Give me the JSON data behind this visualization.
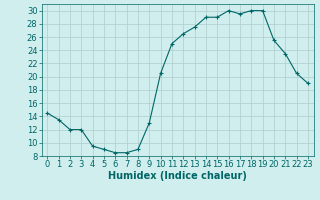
{
  "x": [
    0,
    1,
    2,
    3,
    4,
    5,
    6,
    7,
    8,
    9,
    10,
    11,
    12,
    13,
    14,
    15,
    16,
    17,
    18,
    19,
    20,
    21,
    22,
    23
  ],
  "y": [
    14.5,
    13.5,
    12.0,
    12.0,
    9.5,
    9.0,
    8.5,
    8.5,
    9.0,
    13.0,
    20.5,
    25.0,
    26.5,
    27.5,
    29.0,
    29.0,
    30.0,
    29.5,
    30.0,
    30.0,
    25.5,
    23.5,
    20.5,
    19.0
  ],
  "line_color": "#006666",
  "marker": "P",
  "marker_size": 2.5,
  "bg_color": "#d0eeee",
  "grid_color": "#b0cccc",
  "xlabel": "Humidex (Indice chaleur)",
  "xlim": [
    -0.5,
    23.5
  ],
  "ylim": [
    8,
    31
  ],
  "yticks": [
    8,
    10,
    12,
    14,
    16,
    18,
    20,
    22,
    24,
    26,
    28,
    30
  ],
  "xticks": [
    0,
    1,
    2,
    3,
    4,
    5,
    6,
    7,
    8,
    9,
    10,
    11,
    12,
    13,
    14,
    15,
    16,
    17,
    18,
    19,
    20,
    21,
    22,
    23
  ],
  "font_color": "#006666",
  "label_fontsize": 7,
  "tick_fontsize": 6
}
